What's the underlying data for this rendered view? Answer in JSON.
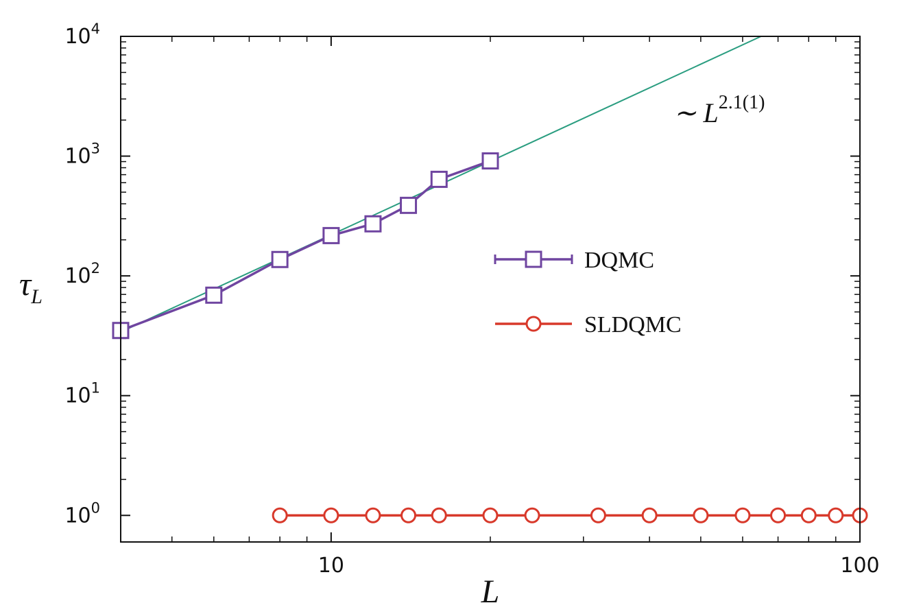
{
  "chart_data": {
    "type": "line",
    "log_x": true,
    "log_y": true,
    "xlabel": "L",
    "ylabel": "τ",
    "ylabel_subscript": "L",
    "xlim": [
      4,
      100
    ],
    "ylim": [
      0.6,
      10000
    ],
    "xticks": [
      10,
      100
    ],
    "xminorticks": [
      5,
      6,
      7,
      8,
      9,
      20,
      30,
      40,
      50,
      60,
      70,
      80,
      90
    ],
    "yticks": [
      {
        "value": 1,
        "label": "10",
        "exponent": "0"
      },
      {
        "value": 10,
        "label": "10",
        "exponent": "1"
      },
      {
        "value": 100,
        "label": "10",
        "exponent": "2"
      },
      {
        "value": 1000,
        "label": "10",
        "exponent": "3"
      },
      {
        "value": 10000,
        "label": "10",
        "exponent": "4"
      }
    ],
    "yminorticks": [
      2,
      3,
      4,
      5,
      6,
      7,
      8,
      9,
      20,
      30,
      40,
      50,
      60,
      70,
      80,
      90,
      200,
      300,
      400,
      500,
      600,
      700,
      800,
      900,
      2000,
      3000,
      4000,
      5000,
      6000,
      7000,
      8000,
      9000
    ],
    "legend": "center-right",
    "series": [
      {
        "name": "DQMC",
        "color": "#6f45a0",
        "marker": "square",
        "x": [
          4,
          6,
          8,
          10,
          12,
          14,
          16,
          20
        ],
        "values": [
          35,
          69,
          137,
          217,
          272,
          388,
          640,
          912
        ]
      },
      {
        "name": "SLDQMC",
        "color": "#d8392b",
        "marker": "circle",
        "x": [
          8,
          10,
          12,
          14,
          16,
          20,
          24,
          32,
          40,
          50,
          60,
          70,
          80,
          90,
          100
        ],
        "values": [
          1,
          1,
          1,
          1,
          1,
          1,
          1,
          1,
          1,
          1,
          1,
          1,
          1,
          1,
          1
        ]
      }
    ],
    "fit": {
      "color": "#2a9d80",
      "x": [
        4,
        65
      ],
      "values": [
        34,
        10000
      ]
    },
    "annotation": {
      "text": "∼ L",
      "superscript": "2.1(1)"
    }
  }
}
